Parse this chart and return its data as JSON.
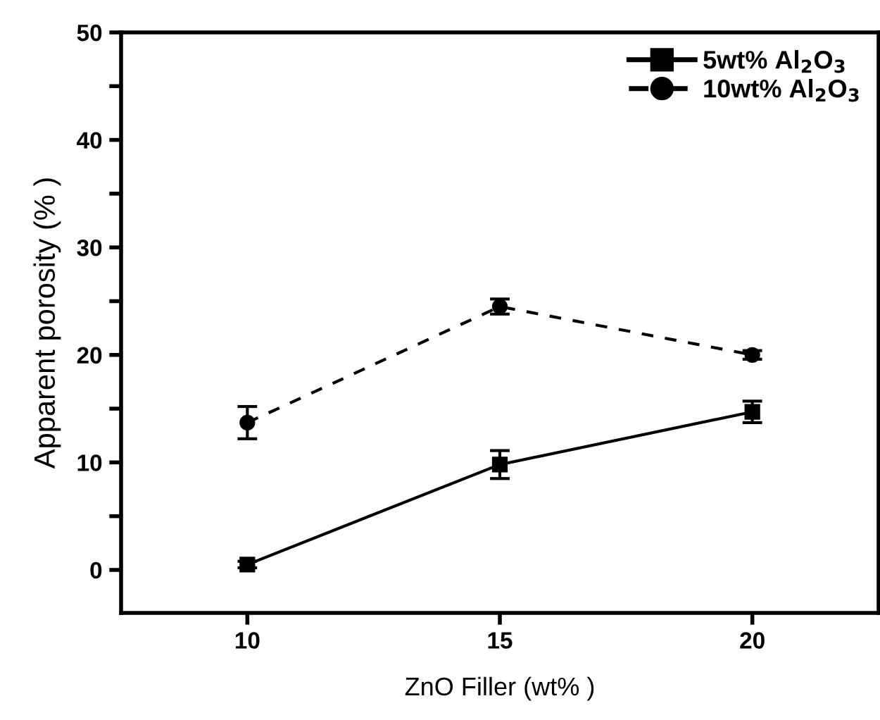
{
  "chart_data": {
    "type": "line",
    "xlabel": "ZnO Filler (wt% )",
    "ylabel": "Apparent porosity (% )",
    "x": [
      10,
      15,
      20
    ],
    "series": [
      {
        "name": "5wt% Al$_{2}$O$_{3}$",
        "color": "#000000",
        "values": [
          0.5,
          9.8,
          14.7
        ],
        "errors": [
          0.3,
          1.3,
          1.0
        ],
        "marker": "square",
        "line_style": "solid"
      },
      {
        "name": "10wt% Al$_{2}$O$_{3}$",
        "color": "#000000",
        "values": [
          13.7,
          24.5,
          20.0
        ],
        "errors": [
          1.5,
          0.7,
          0.4
        ],
        "marker": "circle",
        "line_style": "dashed"
      }
    ],
    "xlim": [
      7.5,
      22.5
    ],
    "xticks": [
      10,
      15,
      20
    ],
    "ylim": [
      -4,
      50
    ],
    "yticks": [
      0,
      {
        "value": 5,
        "label": null
      },
      10,
      {
        "value": 15,
        "label": null
      },
      20,
      {
        "value": 25,
        "label": null
      },
      30,
      {
        "value": 35,
        "label": null
      },
      40,
      {
        "value": 45,
        "label": null
      },
      50
    ],
    "legend": "top right",
    "grid": false
  }
}
